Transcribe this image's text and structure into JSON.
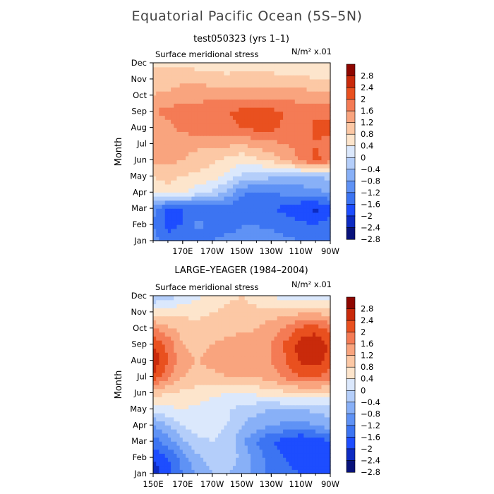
{
  "title": "Equatorial Pacific Ocean (5S–5N)",
  "chart_data": [
    {
      "type": "heatmap",
      "title": "test050323 (yrs 1–1)",
      "subtitle": "Surface meridional stress",
      "units": "N/m² x.01",
      "ylabel": "Month",
      "x_ticks": [
        "170E",
        "170W",
        "150W",
        "130W",
        "110W",
        "90W"
      ],
      "y_ticks": [
        "Jan",
        "Feb",
        "Mar",
        "Apr",
        "May",
        "Jun",
        "Jul",
        "Aug",
        "Sep",
        "Oct",
        "Nov",
        "Dec"
      ],
      "colorbar_labels": [
        "2.8",
        "2.4",
        "2",
        "1.6",
        "1.2",
        "0.8",
        "0.4",
        "0",
        "−0.4",
        "−0.8",
        "−1.2",
        "−1.6",
        "−2",
        "−2.4",
        "−2.8"
      ],
      "x": [
        150,
        160,
        170,
        180,
        190,
        200,
        210,
        220,
        230,
        240,
        250,
        260,
        270
      ],
      "z": [
        [
          -1.4,
          -1.9,
          -1.6,
          -1.9,
          -1.6,
          -1.4,
          -1.4,
          -1.4,
          -1.4,
          -1.5,
          -1.6,
          -1.7,
          -1.6
        ],
        [
          -1.6,
          -2.1,
          -2.0,
          -1.4,
          -1.8,
          -1.9,
          -1.6,
          -1.6,
          -1.7,
          -1.8,
          -1.9,
          -2.0,
          -1.8
        ],
        [
          -1.5,
          -2.2,
          -2.0,
          -1.9,
          -1.9,
          -1.9,
          -1.9,
          -2.0,
          -2.0,
          -2.1,
          -2.3,
          -2.5,
          -2.2
        ],
        [
          0.2,
          0.3,
          0.1,
          -0.3,
          -0.5,
          -0.9,
          -1.5,
          -1.7,
          -1.6,
          -1.5,
          -1.5,
          -1.3,
          -1.2
        ],
        [
          0.4,
          0.5,
          0.4,
          0.3,
          0.2,
          -0.1,
          -0.5,
          -0.6,
          -0.7,
          -0.8,
          -0.8,
          -0.8,
          -0.7
        ],
        [
          0.9,
          0.9,
          0.8,
          0.6,
          0.5,
          0.3,
          0.1,
          0.3,
          0.5,
          0.9,
          1.3,
          1.7,
          1.4
        ],
        [
          0.9,
          1.0,
          1.0,
          0.9,
          0.9,
          0.9,
          0.8,
          1.0,
          1.1,
          1.2,
          1.3,
          1.6,
          1.4
        ],
        [
          0.8,
          1.1,
          1.3,
          1.4,
          1.4,
          1.5,
          1.6,
          1.7,
          1.7,
          1.5,
          1.4,
          1.7,
          1.8
        ],
        [
          1.2,
          1.3,
          1.4,
          1.4,
          1.5,
          1.6,
          1.7,
          1.8,
          1.7,
          1.6,
          1.5,
          1.5,
          1.4
        ],
        [
          0.8,
          0.9,
          1.0,
          1.0,
          1.1,
          1.1,
          1.1,
          1.1,
          1.0,
          1.0,
          1.0,
          1.0,
          0.9
        ],
        [
          0.6,
          0.6,
          0.7,
          0.7,
          0.6,
          0.5,
          0.6,
          0.6,
          0.6,
          0.5,
          0.5,
          0.4,
          0.4
        ],
        [
          0.3,
          0.3,
          0.3,
          0.2,
          0.2,
          0.2,
          0.2,
          0.2,
          0.1,
          0.1,
          0.1,
          0.0,
          0.1
        ]
      ]
    },
    {
      "type": "heatmap",
      "title": "LARGE–YEAGER (1984–2004)",
      "subtitle": "Surface meridional stress",
      "units": "N/m² x.01",
      "ylabel": "Month",
      "x_ticks": [
        "150E",
        "170E",
        "170W",
        "150W",
        "130W",
        "110W",
        "90W"
      ],
      "y_ticks": [
        "Jan",
        "Feb",
        "Mar",
        "Apr",
        "May",
        "Jun",
        "Jul",
        "Aug",
        "Sep",
        "Oct",
        "Nov",
        "Dec"
      ],
      "colorbar_labels": [
        "2.8",
        "2.4",
        "2",
        "1.6",
        "1.2",
        "0.8",
        "0.4",
        "0",
        "−0.4",
        "−0.8",
        "−1.2",
        "−1.6",
        "−2",
        "−2.4",
        "−2.8"
      ],
      "x": [
        150,
        160,
        170,
        180,
        190,
        200,
        210,
        220,
        230,
        240,
        250,
        260,
        270
      ],
      "z": [
        [
          -2.6,
          -2.2,
          -1.6,
          -1.1,
          -0.8,
          -0.8,
          -1.0,
          -1.4,
          -1.7,
          -1.9,
          -2.0,
          -2.2,
          -2.0
        ],
        [
          -2.4,
          -2.0,
          -1.4,
          -0.9,
          -0.6,
          -0.5,
          -0.9,
          -1.4,
          -1.8,
          -2.0,
          -2.2,
          -2.3,
          -2.1
        ],
        [
          -1.8,
          -1.4,
          -0.9,
          -0.5,
          -0.4,
          -0.5,
          -1.1,
          -1.6,
          -2.0,
          -2.2,
          -2.4,
          -2.3,
          -2.0
        ],
        [
          -1.2,
          -0.8,
          -0.4,
          -0.2,
          -0.3,
          -0.4,
          -0.8,
          -1.0,
          -1.2,
          -1.3,
          -1.4,
          -1.2,
          -1.0
        ],
        [
          -0.3,
          -0.1,
          0.0,
          -0.1,
          -0.2,
          -0.3,
          -0.6,
          -0.7,
          -0.8,
          -0.8,
          -0.8,
          -0.7,
          -0.6
        ],
        [
          0.6,
          0.4,
          0.3,
          0.2,
          0.1,
          0.0,
          0.0,
          0.1,
          0.2,
          0.3,
          0.4,
          0.4,
          0.3
        ],
        [
          1.9,
          1.3,
          0.8,
          0.7,
          0.7,
          0.8,
          0.8,
          0.8,
          1.0,
          1.3,
          1.6,
          1.6,
          1.4
        ],
        [
          2.4,
          1.6,
          0.9,
          0.8,
          0.9,
          1.0,
          1.2,
          1.1,
          1.2,
          1.6,
          2.1,
          2.2,
          1.8
        ],
        [
          2.0,
          1.5,
          0.8,
          0.7,
          0.8,
          0.9,
          1.0,
          1.0,
          1.2,
          1.7,
          2.2,
          2.4,
          1.9
        ],
        [
          1.2,
          0.9,
          0.6,
          0.5,
          0.6,
          0.7,
          0.7,
          0.8,
          1.0,
          1.3,
          1.7,
          1.8,
          1.5
        ],
        [
          0.2,
          0.2,
          0.3,
          0.3,
          0.4,
          0.5,
          0.6,
          0.5,
          0.6,
          0.6,
          0.7,
          0.7,
          0.6
        ],
        [
          -0.8,
          -0.6,
          -0.3,
          -0.1,
          0.1,
          0.3,
          0.4,
          0.2,
          0.0,
          -0.2,
          -0.3,
          -0.3,
          -0.3
        ]
      ]
    }
  ],
  "colors": {
    "scale": [
      "#08127a",
      "#0d2bc2",
      "#1d4dff",
      "#3c74f2",
      "#5f92f5",
      "#88b0f7",
      "#b4cefa",
      "#dbe8fc",
      "#fde5cc",
      "#fcc8a5",
      "#f9a47e",
      "#f47b55",
      "#e9501f",
      "#c92a0b",
      "#8e0600"
    ]
  }
}
